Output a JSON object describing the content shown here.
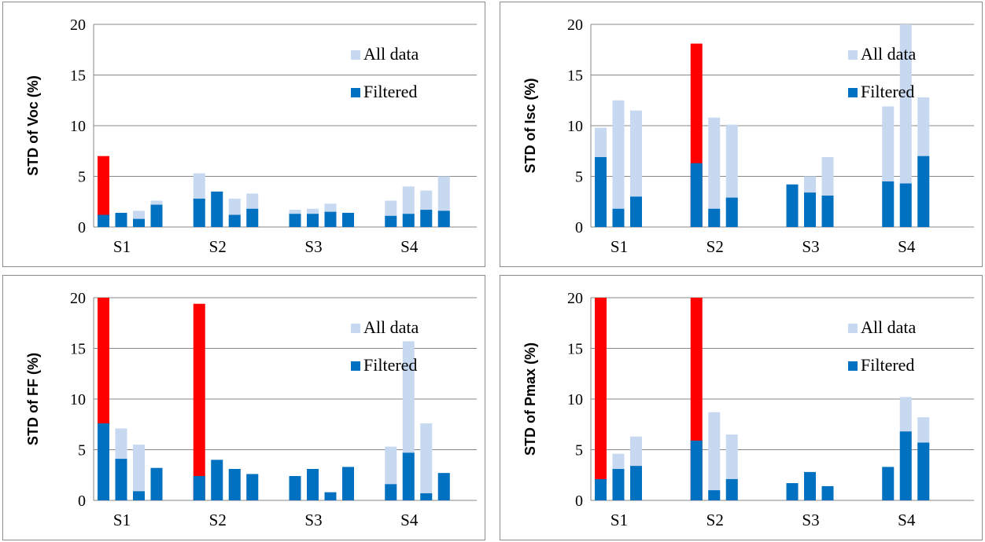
{
  "colors": {
    "all_data": "#c6d9f1",
    "filtered": "#0070c0",
    "outlier": "#ff0000",
    "gridline": "#878787",
    "axis": "#878787"
  },
  "chart_data": [
    {
      "type": "bar",
      "ylabel": "STD of Voc (%)",
      "ylim": [
        0,
        20
      ],
      "yticks": [
        0,
        5,
        10,
        15,
        20
      ],
      "grid": true,
      "legend_placement": "top-right",
      "legend": [
        "All data",
        "Filtered"
      ],
      "categories": [
        "S1",
        "S2",
        "S3",
        "S4"
      ],
      "series": [
        {
          "name": "All data",
          "values": [
            [
              7.0,
              1.4,
              1.6,
              2.6
            ],
            [
              5.3,
              3.5,
              2.8,
              3.3
            ],
            [
              1.7,
              1.8,
              2.3,
              1.4
            ],
            [
              2.6,
              4.0,
              3.6,
              5.0
            ]
          ]
        },
        {
          "name": "Filtered",
          "values": [
            [
              1.2,
              1.4,
              0.8,
              2.2
            ],
            [
              2.8,
              3.5,
              1.2,
              1.8
            ],
            [
              1.3,
              1.3,
              1.5,
              1.4
            ],
            [
              1.1,
              1.3,
              1.7,
              1.6
            ]
          ]
        }
      ],
      "outlier_bars": [
        [
          true,
          false,
          false,
          false
        ],
        [
          false,
          false,
          false,
          false
        ],
        [
          false,
          false,
          false,
          false
        ],
        [
          false,
          false,
          false,
          false
        ]
      ]
    },
    {
      "type": "bar",
      "ylabel": "STD of Isc (%)",
      "ylim": [
        0,
        20
      ],
      "yticks": [
        0,
        5,
        10,
        15,
        20
      ],
      "grid": true,
      "legend_placement": "top-right",
      "legend": [
        "All data",
        "Filtered"
      ],
      "categories": [
        "S1",
        "S2",
        "S3",
        "S4"
      ],
      "series": [
        {
          "name": "All data",
          "values": [
            [
              9.8,
              12.5,
              11.5
            ],
            [
              18.1,
              10.8,
              10.1
            ],
            [
              4.2,
              5.0,
              6.9
            ],
            [
              11.9,
              20.0,
              12.8
            ]
          ]
        },
        {
          "name": "Filtered",
          "values": [
            [
              6.9,
              1.8,
              3.0
            ],
            [
              6.3,
              1.8,
              2.9
            ],
            [
              4.2,
              3.4,
              3.1
            ],
            [
              4.5,
              4.3,
              7.0
            ]
          ]
        }
      ],
      "outlier_bars": [
        [
          false,
          false,
          false
        ],
        [
          true,
          false,
          false
        ],
        [
          false,
          false,
          false
        ],
        [
          false,
          false,
          false
        ]
      ]
    },
    {
      "type": "bar",
      "ylabel": "STD of FF (%)",
      "ylim": [
        0,
        20
      ],
      "yticks": [
        0,
        5,
        10,
        15,
        20
      ],
      "grid": true,
      "legend_placement": "top-right",
      "legend": [
        "All data",
        "Filtered"
      ],
      "categories": [
        "S1",
        "S2",
        "S3",
        "S4"
      ],
      "series": [
        {
          "name": "All data",
          "values": [
            [
              20.0,
              7.1,
              5.5,
              3.2
            ],
            [
              19.4,
              4.0,
              3.1,
              2.6
            ],
            [
              2.4,
              3.1,
              0.8,
              3.3
            ],
            [
              5.3,
              15.7,
              7.6,
              2.7
            ]
          ]
        },
        {
          "name": "Filtered",
          "values": [
            [
              7.6,
              4.1,
              0.9,
              3.2
            ],
            [
              2.4,
              4.0,
              3.1,
              2.6
            ],
            [
              2.4,
              3.1,
              0.8,
              3.3
            ],
            [
              1.6,
              4.7,
              0.7,
              2.7
            ]
          ]
        }
      ],
      "outlier_bars": [
        [
          true,
          false,
          false,
          false
        ],
        [
          true,
          false,
          false,
          false
        ],
        [
          false,
          false,
          false,
          false
        ],
        [
          false,
          false,
          false,
          false
        ]
      ]
    },
    {
      "type": "bar",
      "ylabel": "STD of Pmax (%)",
      "ylim": [
        0,
        20
      ],
      "yticks": [
        0,
        5,
        10,
        15,
        20
      ],
      "grid": true,
      "legend_placement": "top-right",
      "legend": [
        "All data",
        "Filtered"
      ],
      "categories": [
        "S1",
        "S2",
        "S3",
        "S4"
      ],
      "series": [
        {
          "name": "All data",
          "values": [
            [
              20.0,
              4.6,
              6.3
            ],
            [
              20.0,
              8.7,
              6.5
            ],
            [
              1.7,
              2.8,
              1.4
            ],
            [
              3.3,
              10.2,
              8.2
            ]
          ]
        },
        {
          "name": "Filtered",
          "values": [
            [
              2.1,
              3.1,
              3.4
            ],
            [
              5.9,
              1.0,
              2.1
            ],
            [
              1.7,
              2.8,
              1.4
            ],
            [
              3.3,
              6.8,
              5.7
            ]
          ]
        }
      ],
      "outlier_bars": [
        [
          true,
          false,
          false
        ],
        [
          true,
          false,
          false
        ],
        [
          false,
          false,
          false
        ],
        [
          false,
          false,
          false
        ]
      ]
    }
  ]
}
